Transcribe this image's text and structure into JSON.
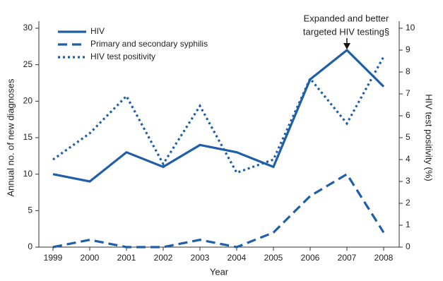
{
  "chart_data": {
    "type": "line",
    "categories": [
      "1999",
      "2000",
      "2001",
      "2002",
      "2003",
      "2004",
      "2005",
      "2006",
      "2007",
      "2008"
    ],
    "xlabel": "Year",
    "ylabel": "Annual no. of new diagnoses",
    "y2label": "HIV test positivity (%)",
    "ylim": [
      0,
      30
    ],
    "yticks": [
      0,
      5,
      10,
      15,
      20,
      25,
      30
    ],
    "y2lim": [
      0,
      10
    ],
    "y2ticks": [
      0,
      1,
      2,
      3,
      4,
      5,
      6,
      7,
      8,
      9,
      10
    ],
    "series": [
      {
        "name": "HIV",
        "color": "#1f5ea8",
        "style": "solid",
        "values": [
          10,
          9,
          13,
          11,
          14,
          13,
          11,
          23,
          27,
          22
        ]
      },
      {
        "name": "Primary and secondary syphilis",
        "color": "#1f5ea8",
        "style": "dashed",
        "values": [
          0,
          1,
          0,
          0,
          1,
          0,
          2,
          7,
          10,
          2
        ]
      },
      {
        "name": "HIV test positivity",
        "color": "#1f5ea8",
        "style": "dotted",
        "axis": "y2",
        "values": [
          4.0,
          5.2,
          6.9,
          3.8,
          6.45,
          3.4,
          4.0,
          7.7,
          5.65,
          8.7
        ]
      }
    ],
    "annotation": {
      "text": [
        "Expanded and better",
        "targeted HIV testing§"
      ]
    },
    "legend": "upper left"
  }
}
